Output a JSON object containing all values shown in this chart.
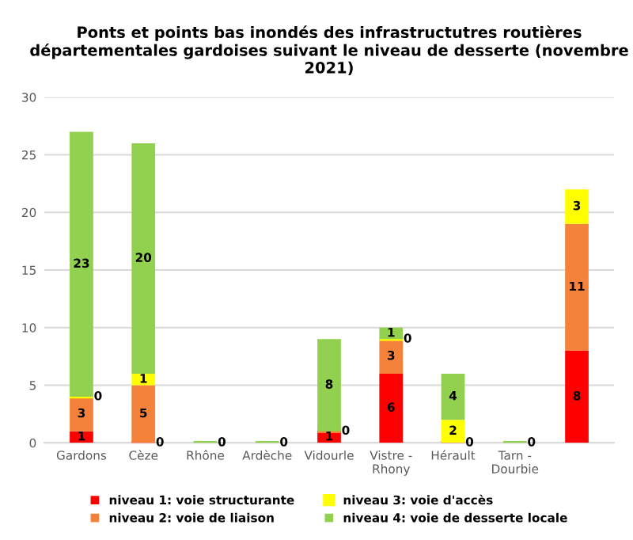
{
  "chart_data": {
    "type": "bar",
    "stacked": true,
    "title": "Ponts et points bas inondés des infrastructutres routières départementales gardoises suivant le niveau de desserte (novembre 2021)",
    "categories": [
      "Gardons",
      "Cèze",
      "Rhône",
      "Ardèche",
      "Vidourle",
      "Vistre -\nRhony",
      "Hérault",
      "Tarn -\nDourbie",
      null
    ],
    "series": [
      {
        "name": "niveau 1: voie structurante",
        "color": "#ff0000",
        "values": [
          1,
          0,
          0,
          0,
          1,
          6,
          0,
          0,
          8
        ],
        "value_labels": [
          "1",
          "0",
          null,
          null,
          "1",
          "6",
          "0",
          null,
          "8"
        ]
      },
      {
        "name": "niveau 2: voie de liaison",
        "color": "#f4823a",
        "values": [
          3,
          5,
          0,
          0,
          0,
          3,
          0,
          0,
          11
        ],
        "value_labels": [
          "3",
          "5",
          null,
          null,
          "0",
          "3",
          null,
          null,
          "11"
        ]
      },
      {
        "name": "niveau 3: voie d'accès",
        "color": "#ffff00",
        "values": [
          0,
          1,
          0,
          0,
          0,
          0,
          2,
          0,
          3
        ],
        "value_labels": [
          "0",
          "1",
          null,
          null,
          null,
          "0",
          "2",
          null,
          "3"
        ]
      },
      {
        "name": "niveau 4: voie de desserte locale",
        "color": "#92d050",
        "values": [
          23,
          20,
          0,
          0,
          8,
          1,
          4,
          0,
          0
        ],
        "value_labels": [
          "23",
          "20",
          "0",
          "0",
          "8",
          "1",
          "4",
          "0",
          null
        ]
      }
    ],
    "ylim": [
      0,
      30
    ],
    "yticks": [
      0,
      5,
      10,
      15,
      20,
      25,
      30
    ],
    "grid": "y",
    "legend": "bottom"
  }
}
